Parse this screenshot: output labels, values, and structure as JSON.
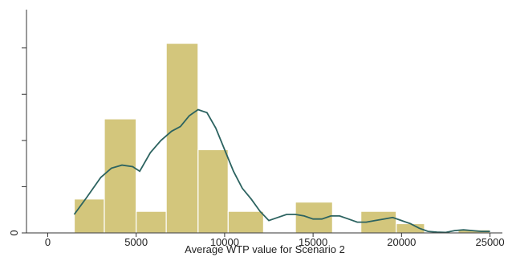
{
  "chart_data": {
    "type": "bar",
    "title": "",
    "xlabel": "Average WTP value for Scenario 2",
    "ylabel": "",
    "xlim": [
      -1200,
      25700
    ],
    "ylim": [
      0,
      0.000148
    ],
    "x_ticks": [
      {
        "value": 0,
        "label": "0"
      },
      {
        "value": 5000,
        "label": "5000"
      },
      {
        "value": 10000,
        "label": "10000"
      },
      {
        "value": 15000,
        "label": "15000"
      },
      {
        "value": 20000,
        "label": "20000"
      },
      {
        "value": 25000,
        "label": "25000"
      }
    ],
    "y_ticks": [
      {
        "value": 0,
        "label": "0"
      },
      {
        "value": 3e-05,
        "label": ""
      },
      {
        "value": 6e-05,
        "label": ""
      },
      {
        "value": 9e-05,
        "label": ""
      },
      {
        "value": 0.00012,
        "label": ""
      }
    ],
    "bin_width": 1700,
    "bins": [
      {
        "start": 1500,
        "end": 3200,
        "value": 2.2e-05
      },
      {
        "start": 3200,
        "end": 5000,
        "value": 7.4e-05
      },
      {
        "start": 5000,
        "end": 6700,
        "value": 1.4e-05
      },
      {
        "start": 6700,
        "end": 8500,
        "value": 0.000123
      },
      {
        "start": 8500,
        "end": 10200,
        "value": 5.4e-05
      },
      {
        "start": 10200,
        "end": 12200,
        "value": 1.4e-05
      },
      {
        "start": 12200,
        "end": 14000,
        "value": 0
      },
      {
        "start": 14000,
        "end": 16100,
        "value": 2e-05
      },
      {
        "start": 16100,
        "end": 17700,
        "value": 0
      },
      {
        "start": 17700,
        "end": 19700,
        "value": 1.4e-05
      },
      {
        "start": 19700,
        "end": 21300,
        "value": 6e-06
      },
      {
        "start": 21300,
        "end": 23200,
        "value": 0
      },
      {
        "start": 23200,
        "end": 25000,
        "value": 2e-06
      }
    ],
    "density_curve": {
      "x": [
        1500,
        2200,
        3000,
        3600,
        4200,
        4800,
        5200,
        5800,
        6400,
        7000,
        7500,
        8000,
        8500,
        9000,
        9500,
        10000,
        10500,
        11000,
        11500,
        12000,
        12500,
        13000,
        13500,
        14000,
        14500,
        15000,
        15500,
        16000,
        16500,
        17000,
        17500,
        18000,
        18500,
        19000,
        19500,
        20000,
        20500,
        21000,
        21500,
        22000,
        22500,
        23000,
        23500,
        24000,
        24500,
        25000
      ],
      "y": [
        1.2e-05,
        2.3e-05,
        3.6e-05,
        4.2e-05,
        4.4e-05,
        4.3e-05,
        4e-05,
        5.2e-05,
        6e-05,
        6.6e-05,
        6.9e-05,
        7.6e-05,
        8e-05,
        7.8e-05,
        6.8e-05,
        5.4e-05,
        4e-05,
        2.9e-05,
        2.2e-05,
        1.4e-05,
        8e-06,
        1e-05,
        1.2e-05,
        1.2e-05,
        1.1e-05,
        9e-06,
        9e-06,
        1.1e-05,
        1.1e-05,
        9e-06,
        7e-06,
        7e-06,
        8e-06,
        9e-06,
        1e-05,
        8e-06,
        6e-06,
        3e-06,
        1e-06,
        5e-07,
        3e-07,
        1.5e-06,
        2e-06,
        1.5e-06,
        1e-06,
        1e-06
      ]
    },
    "grid": false,
    "legend": "none",
    "colors": {
      "bar_fill": "#d3c67c",
      "bar_edge": "#ffffff",
      "curve": "#2c6360",
      "axis": "#333333",
      "text": "#222222"
    }
  }
}
